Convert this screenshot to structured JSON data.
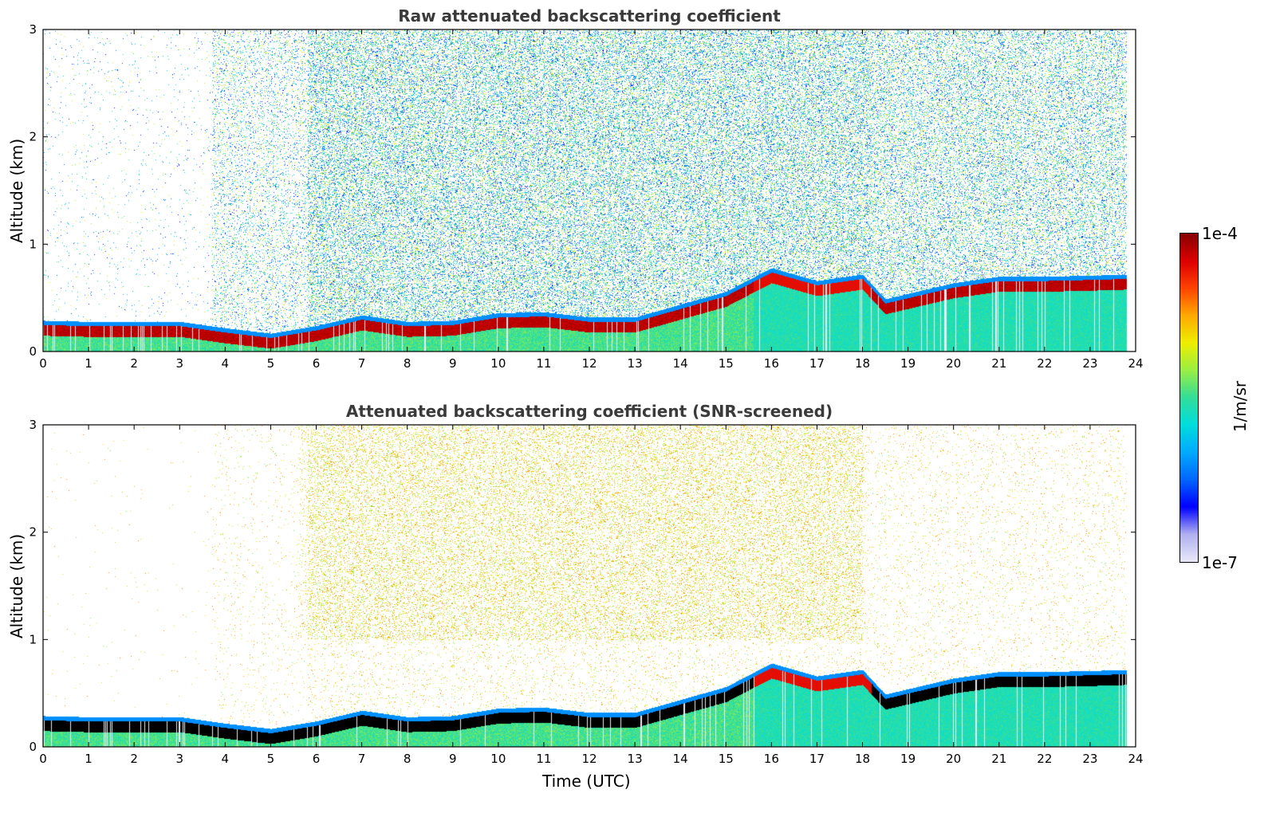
{
  "chart_data": [
    {
      "type": "heatmap",
      "title": "Raw attenuated backscattering coefficient",
      "xlabel": "",
      "ylabel": "Altitude (km)",
      "xlim": [
        0,
        24
      ],
      "ylim": [
        0,
        3
      ],
      "xticks": [
        "0",
        "1",
        "2",
        "3",
        "4",
        "5",
        "6",
        "7",
        "8",
        "9",
        "10",
        "11",
        "12",
        "13",
        "14",
        "15",
        "16",
        "17",
        "18",
        "19",
        "20",
        "21",
        "22",
        "23",
        "24"
      ],
      "yticks": [
        "0",
        "1",
        "2",
        "3"
      ],
      "layer_top_km": [
        [
          0,
          0.25
        ],
        [
          1,
          0.24
        ],
        [
          2,
          0.24
        ],
        [
          3,
          0.24
        ],
        [
          4,
          0.18
        ],
        [
          5,
          0.13
        ],
        [
          6,
          0.2
        ],
        [
          7,
          0.3
        ],
        [
          8,
          0.24
        ],
        [
          9,
          0.25
        ],
        [
          10,
          0.32
        ],
        [
          11,
          0.33
        ],
        [
          12,
          0.28
        ],
        [
          13,
          0.28
        ],
        [
          14,
          0.4
        ],
        [
          15,
          0.52
        ],
        [
          16,
          0.74
        ],
        [
          17,
          0.62
        ],
        [
          18,
          0.68
        ],
        [
          18.5,
          0.45
        ],
        [
          19,
          0.5
        ],
        [
          20,
          0.6
        ],
        [
          21,
          0.66
        ],
        [
          22,
          0.66
        ],
        [
          23,
          0.67
        ],
        [
          23.8,
          0.68
        ]
      ]
    },
    {
      "type": "heatmap",
      "title": "Attenuated backscattering coefficient (SNR-screened)",
      "xlabel": "Time (UTC)",
      "ylabel": "Altitude (km)",
      "xlim": [
        0,
        24
      ],
      "ylim": [
        0,
        3
      ],
      "xticks": [
        "0",
        "1",
        "2",
        "3",
        "4",
        "5",
        "6",
        "7",
        "8",
        "9",
        "10",
        "11",
        "12",
        "13",
        "14",
        "15",
        "16",
        "17",
        "18",
        "19",
        "20",
        "21",
        "22",
        "23",
        "24"
      ],
      "yticks": [
        "0",
        "1",
        "2",
        "3"
      ],
      "layer_top_km": [
        [
          0,
          0.25
        ],
        [
          1,
          0.24
        ],
        [
          2,
          0.24
        ],
        [
          3,
          0.24
        ],
        [
          4,
          0.18
        ],
        [
          5,
          0.13
        ],
        [
          6,
          0.2
        ],
        [
          7,
          0.3
        ],
        [
          8,
          0.24
        ],
        [
          9,
          0.25
        ],
        [
          10,
          0.32
        ],
        [
          11,
          0.33
        ],
        [
          12,
          0.28
        ],
        [
          13,
          0.28
        ],
        [
          14,
          0.4
        ],
        [
          15,
          0.52
        ],
        [
          16,
          0.74
        ],
        [
          17,
          0.62
        ],
        [
          18,
          0.68
        ],
        [
          18.5,
          0.45
        ],
        [
          19,
          0.5
        ],
        [
          20,
          0.6
        ],
        [
          21,
          0.66
        ],
        [
          22,
          0.66
        ],
        [
          23,
          0.67
        ],
        [
          23.8,
          0.68
        ]
      ]
    }
  ],
  "colorbar": {
    "max_label": "1e-4",
    "min_label": "1e-7",
    "unit_label": "1/m/sr",
    "colors": [
      "#e8e8f8",
      "#b0b0f0",
      "#0000ff",
      "#0066ff",
      "#00aaff",
      "#00dddd",
      "#33dd99",
      "#99ee44",
      "#eeee00",
      "#ffaa00",
      "#ff4400",
      "#dd0000",
      "#880000"
    ]
  }
}
